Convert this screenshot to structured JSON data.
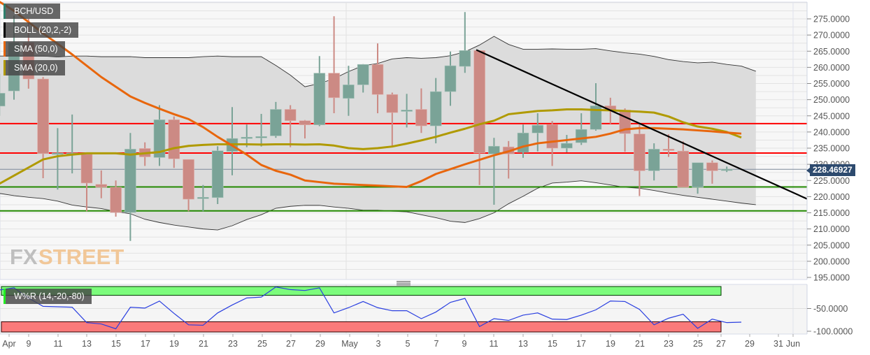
{
  "legends": {
    "symbol": "BCH/USD",
    "boll": "BOLL (20,2,-2)",
    "sma50": "SMA (50,0)",
    "sma20": "SMA (20,0)",
    "wr": "W%R (14,-20,-80)"
  },
  "colors": {
    "up": "#7aa397",
    "up_dark": "#2e7f6c",
    "down": "#cc8a84",
    "down_dark": "#d45a4a",
    "sma50": "#e8660c",
    "sma20": "#b09a00",
    "resistance": "#ff0000",
    "support": "#228800",
    "trendline": "#000000",
    "wr_line": "#2a3fe0",
    "wr_overbought": "#7cfc7c",
    "wr_oversold": "#fa7a7a"
  },
  "current_price": "228.46927",
  "watermark": {
    "fx": "FX",
    "street": "STREET"
  },
  "chart_data": [
    {
      "type": "candlestick",
      "title": "BCH/USD",
      "ylabel": "",
      "ylim": [
        195,
        280
      ],
      "y_ticks": [
        "275.0000",
        "270.0000",
        "265.0000",
        "260.0000",
        "255.0000",
        "250.0000",
        "245.0000",
        "240.0000",
        "235.0000",
        "230.0000",
        "225.0000",
        "220.0000",
        "215.0000",
        "210.0000",
        "205.0000",
        "200.0000",
        "195.0000"
      ],
      "x_ticks": [
        "Apr",
        "9",
        "11",
        "13",
        "15",
        "17",
        "19",
        "21",
        "23",
        "25",
        "27",
        "29",
        "May",
        "3",
        "5",
        "7",
        "9",
        "11",
        "13",
        "15",
        "17",
        "19",
        "21",
        "23",
        "25",
        "27",
        "29",
        "31",
        "Jun"
      ],
      "candles": [
        {
          "d": "Apr 7",
          "o": 248.0,
          "h": 258.0,
          "c": 252.0,
          "l": 245.0
        },
        {
          "d": "Apr 8",
          "o": 252.7,
          "h": 276.0,
          "c": 267.7,
          "l": 250.0
        },
        {
          "d": "Apr 9",
          "o": 267.7,
          "h": 275.0,
          "c": 256.4,
          "l": 253.4
        },
        {
          "d": "Apr 10",
          "o": 256.4,
          "h": 257.0,
          "c": 233.3,
          "l": 225.7
        },
        {
          "d": "Apr 11",
          "o": 233.2,
          "h": 241.2,
          "c": 233.5,
          "l": 222.2
        },
        {
          "d": "Apr 12",
          "o": 233.2,
          "h": 245.4,
          "c": 233.5,
          "l": 227.2
        },
        {
          "d": "Apr 13",
          "o": 233.1,
          "h": 233.1,
          "c": 224.2,
          "l": 215.5
        },
        {
          "d": "Apr 14",
          "o": 223.8,
          "h": 228.1,
          "c": 222.9,
          "l": 219.5
        },
        {
          "d": "Apr 15",
          "o": 222.9,
          "h": 225.0,
          "c": 215.1,
          "l": 213.8
        },
        {
          "d": "Apr 16",
          "o": 215.1,
          "h": 239.7,
          "c": 234.7,
          "l": 206.3
        },
        {
          "d": "Apr 17",
          "o": 234.9,
          "h": 236.8,
          "c": 232.3,
          "l": 229.5
        },
        {
          "d": "Apr 18",
          "o": 232.1,
          "h": 248.3,
          "c": 243.8,
          "l": 229.5
        },
        {
          "d": "Apr 19",
          "o": 243.8,
          "h": 244.8,
          "c": 231.7,
          "l": 228.9
        },
        {
          "d": "Apr 20",
          "o": 231.5,
          "h": 231.5,
          "c": 219.2,
          "l": 215.5
        },
        {
          "d": "Apr 21",
          "o": 219.5,
          "h": 223.6,
          "c": 219.8,
          "l": 215.5
        },
        {
          "d": "Apr 22",
          "o": 219.7,
          "h": 235.6,
          "c": 234.2,
          "l": 217.7
        },
        {
          "d": "Apr 23",
          "o": 234.0,
          "h": 247.7,
          "c": 238.0,
          "l": 226.6
        },
        {
          "d": "Apr 24",
          "o": 238.2,
          "h": 242.3,
          "c": 238.4,
          "l": 235.3
        },
        {
          "d": "Apr 25",
          "o": 238.4,
          "h": 245.6,
          "c": 238.6,
          "l": 235.5
        },
        {
          "d": "Apr 26",
          "o": 238.8,
          "h": 249.3,
          "c": 247.0,
          "l": 238.2
        },
        {
          "d": "Apr 27",
          "o": 247.0,
          "h": 248.3,
          "c": 243.5,
          "l": 235.3
        },
        {
          "d": "Apr 28",
          "o": 243.5,
          "h": 243.7,
          "c": 242.2,
          "l": 238.0
        },
        {
          "d": "Apr 29",
          "o": 242.2,
          "h": 263.5,
          "c": 258.2,
          "l": 241.8
        },
        {
          "d": "Apr 30",
          "o": 258.2,
          "h": 275.8,
          "c": 250.6,
          "l": 245.8
        },
        {
          "d": "May 1",
          "o": 250.4,
          "h": 260.5,
          "c": 254.6,
          "l": 245.0
        },
        {
          "d": "May 2",
          "o": 254.6,
          "h": 261.0,
          "c": 260.9,
          "l": 252.2
        },
        {
          "d": "May 3",
          "o": 260.9,
          "h": 267.4,
          "c": 251.6,
          "l": 245.8
        },
        {
          "d": "May 4",
          "o": 251.6,
          "h": 252.2,
          "c": 246.0,
          "l": 235.4
        },
        {
          "d": "May 5",
          "o": 246.4,
          "h": 251.8,
          "c": 246.8,
          "l": 241.4
        },
        {
          "d": "May 6",
          "o": 247.0,
          "h": 253.5,
          "c": 241.9,
          "l": 239.7
        },
        {
          "d": "May 7",
          "o": 241.9,
          "h": 256.7,
          "c": 252.5,
          "l": 236.5
        },
        {
          "d": "May 8",
          "o": 252.5,
          "h": 264.9,
          "c": 260.5,
          "l": 248.1
        },
        {
          "d": "May 9",
          "o": 260.3,
          "h": 277.1,
          "c": 265.2,
          "l": 258.3
        },
        {
          "d": "May 10",
          "o": 265.2,
          "h": 265.2,
          "c": 233.5,
          "l": 223.6
        },
        {
          "d": "May 11",
          "o": 233.2,
          "h": 238.2,
          "c": 235.6,
          "l": 217.5
        },
        {
          "d": "May 12",
          "o": 235.4,
          "h": 237.2,
          "c": 233.2,
          "l": 225.6
        },
        {
          "d": "May 13",
          "o": 233.7,
          "h": 242.3,
          "c": 239.7,
          "l": 232.0
        },
        {
          "d": "May 14",
          "o": 239.7,
          "h": 245.8,
          "c": 242.1,
          "l": 234.0
        },
        {
          "d": "May 15",
          "o": 242.3,
          "h": 243.4,
          "c": 235.0,
          "l": 229.5
        },
        {
          "d": "May 16",
          "o": 235.0,
          "h": 239.1,
          "c": 236.5,
          "l": 233.7
        },
        {
          "d": "May 17",
          "o": 236.7,
          "h": 245.8,
          "c": 240.8,
          "l": 236.0
        },
        {
          "d": "May 18",
          "o": 240.8,
          "h": 255.1,
          "c": 248.1,
          "l": 240.4
        },
        {
          "d": "May 19",
          "o": 248.1,
          "h": 250.6,
          "c": 246.8,
          "l": 242.5
        },
        {
          "d": "May 20",
          "o": 246.8,
          "h": 247.3,
          "c": 239.5,
          "l": 233.9
        },
        {
          "d": "May 21",
          "o": 239.4,
          "h": 242.5,
          "c": 228.0,
          "l": 220.2
        },
        {
          "d": "May 22",
          "o": 228.0,
          "h": 236.5,
          "c": 234.7,
          "l": 225.0
        },
        {
          "d": "May 23",
          "o": 234.7,
          "h": 239.3,
          "c": 234.3,
          "l": 232.3
        },
        {
          "d": "May 24",
          "o": 234.1,
          "h": 237.1,
          "c": 222.9,
          "l": 222.9
        },
        {
          "d": "May 25",
          "o": 222.9,
          "h": 230.5,
          "c": 230.5,
          "l": 220.9
        },
        {
          "d": "May 26",
          "o": 230.5,
          "h": 231.2,
          "c": 228.0,
          "l": 224.0
        },
        {
          "d": "May 27",
          "o": 228.2,
          "h": 229.3,
          "c": 228.5,
          "l": 227.6
        }
      ],
      "sma50": [
        280.3,
        277.5,
        274.0,
        270.5,
        267.3,
        264.0,
        260.5,
        257.0,
        254.0,
        251.0,
        249.0,
        247.2,
        245.5,
        244.0,
        241.5,
        238.5,
        235.8,
        233.0,
        229.8,
        228.0,
        226.8,
        225.0,
        224.5,
        224.0,
        223.8,
        223.6,
        223.4,
        223.2,
        223.0,
        224.8,
        227.0,
        228.5,
        230.0,
        231.4,
        232.8,
        234.0,
        235.5,
        236.5,
        237.0,
        237.5,
        238.0,
        238.5,
        239.5,
        240.8,
        241.2,
        241.2,
        241.0,
        240.8,
        240.5,
        240.2,
        239.8,
        239.5
      ],
      "sma20": [
        224.0,
        226.5,
        229.0,
        231.5,
        232.5,
        233.0,
        233.4,
        233.4,
        233.4,
        233.0,
        233.4,
        233.8,
        235.0,
        235.7,
        236.0,
        236.2,
        236.2,
        236.2,
        236.1,
        236.2,
        236.2,
        236.1,
        236.2,
        235.8,
        235.0,
        234.7,
        235.0,
        235.5,
        236.4,
        237.4,
        238.5,
        239.8,
        241.0,
        242.4,
        243.5,
        245.5,
        246.0,
        246.5,
        246.7,
        247.0,
        247.0,
        246.8,
        246.7,
        246.5,
        246.3,
        246.0,
        244.8,
        243.0,
        241.7,
        241.0,
        240.0,
        238.3
      ],
      "boll_upper": [
        253.0,
        262.5,
        263.5,
        263.5,
        263.5,
        263.5,
        263.2,
        263.5,
        263.5,
        263.3,
        263.3,
        263.3,
        263.0,
        263.0,
        263.0,
        263.0,
        263.3,
        263.5,
        263.3,
        263.3,
        263.3,
        260.6,
        257.6,
        254.0,
        255.0,
        256.5,
        258.7,
        260.5,
        261.2,
        262.6,
        263.0,
        262.8,
        263.0,
        263.6,
        264.8,
        266.9,
        269.6,
        267.1,
        265.6,
        265.6,
        265.7,
        265.6,
        265.6,
        265.8,
        265.1,
        264.5,
        264.1,
        263.4,
        262.4,
        261.8,
        261.4,
        261.6,
        260.9,
        260.4,
        258.8
      ],
      "boll_lower": [
        222.6,
        222.0,
        221.0,
        220.3,
        219.8,
        219.4,
        218.6,
        217.4,
        216.8,
        216.3,
        215.4,
        214.7,
        213.0,
        212.0,
        211.2,
        210.6,
        210.0,
        209.7,
        211.0,
        212.9,
        214.4,
        216.4,
        217.0,
        217.3,
        217.3,
        216.8,
        216.4,
        215.8,
        215.8,
        215.5,
        215.3,
        214.4,
        213.5,
        212.4,
        212.0,
        213.2,
        215.0,
        217.8,
        220.1,
        222.6,
        224.2,
        224.5,
        224.9,
        224.3,
        223.6,
        222.9,
        222.6,
        221.9,
        221.1,
        220.4,
        219.8,
        219.2,
        218.6,
        218.0,
        217.5
      ],
      "horizontal_lines": {
        "resistance": [
          242.6,
          233.5
        ],
        "support": [
          223.0,
          215.6
        ]
      },
      "trendline": {
        "from": {
          "d": "May 10",
          "v": 265.4
        },
        "to": {
          "d": "Jun 1",
          "v": 219.3
        }
      }
    },
    {
      "type": "line",
      "title": "W%R (14,-20,-80)",
      "ylim": [
        -105,
        5
      ],
      "y_ticks": [
        "-50.0000",
        "-100.0000"
      ],
      "levels": [
        -20,
        -80
      ],
      "values": [
        -5,
        -8,
        -3,
        -26,
        -45,
        -46,
        -47,
        -82,
        -85,
        -96,
        -47,
        -49,
        -33,
        -61,
        -87,
        -88,
        -60,
        -42,
        -26,
        -24,
        -1,
        -7,
        -9,
        -3,
        -60,
        -48,
        -34,
        -48,
        -55,
        -55,
        -73,
        -58,
        -36,
        -27,
        -91,
        -73,
        -77,
        -65,
        -60,
        -74,
        -75,
        -65,
        -53,
        -33,
        -34,
        -52,
        -87,
        -72,
        -63,
        -95,
        -74,
        -82,
        -81
      ]
    }
  ]
}
